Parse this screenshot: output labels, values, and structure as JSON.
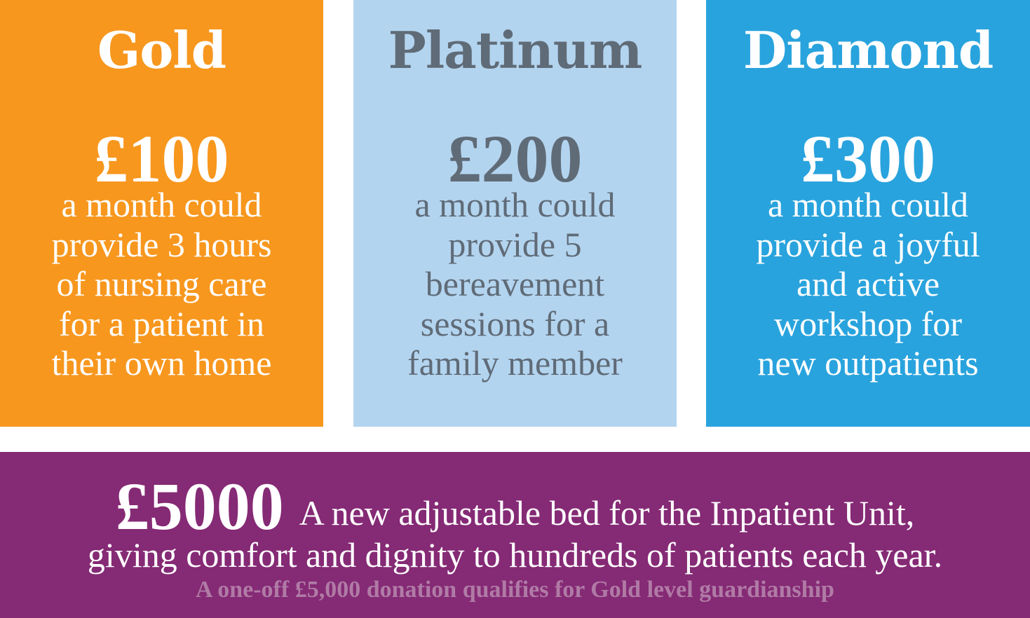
{
  "colors": {
    "gold": "#F7971E",
    "platinum": "#B3D4EF",
    "platinum_text": "#5F6B77",
    "diamond": "#29A3DD",
    "purple": "#852A75",
    "note": "#B07BA6"
  },
  "tiers": [
    {
      "name": "Gold",
      "price": "£100",
      "lines": [
        "a month could",
        "provide 3 hours",
        "of nursing care",
        "for a patient in",
        "their own home"
      ]
    },
    {
      "name": "Platinum",
      "price": "£200",
      "lines": [
        "a month could",
        "provide 5",
        "bereavement",
        "sessions for a",
        "family member"
      ]
    },
    {
      "name": "Diamond",
      "price": "£300",
      "lines": [
        "a month could",
        "provide a joyful",
        "and active",
        "workshop for",
        "new outpatients"
      ]
    }
  ],
  "bottom": {
    "price": "£5000",
    "line1": "A new adjustable bed for the Inpatient Unit,",
    "line2": "giving comfort and dignity to hundreds of patients each year.",
    "note": "A one-off £5,000 donation qualifies for Gold level guardianship"
  }
}
